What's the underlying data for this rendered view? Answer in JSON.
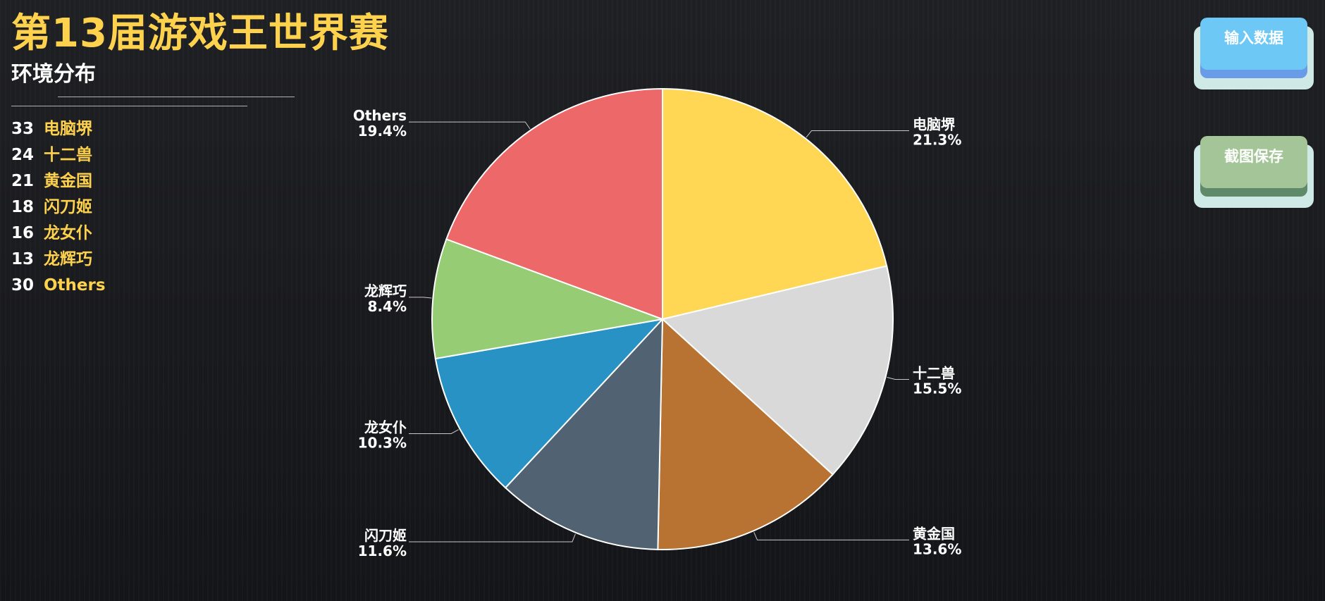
{
  "header": {
    "title": "第13届游戏王世界赛",
    "subtitle": "环境分布"
  },
  "legend": [
    {
      "count": "33",
      "name": "电脑堺"
    },
    {
      "count": "24",
      "name": "十二兽"
    },
    {
      "count": "21",
      "name": "黄金国"
    },
    {
      "count": "18",
      "name": "闪刀姬"
    },
    {
      "count": "16",
      "name": "龙女仆"
    },
    {
      "count": "13",
      "name": "龙辉巧"
    },
    {
      "count": "30",
      "name": "Others"
    }
  ],
  "buttons": {
    "input_label": "输入数据",
    "screenshot_label": "截图保存"
  },
  "colors": {
    "accent": "#ffd24d",
    "background": "#1a1b1f",
    "slice_border": "#ffffff",
    "leader_line": "#c8c8c8"
  },
  "chart_data": {
    "type": "pie",
    "start": "12 o'clock",
    "direction": "clockwise",
    "categories": [
      "电脑堺",
      "十二兽",
      "黄金国",
      "闪刀姬",
      "龙女仆",
      "龙辉巧",
      "Others"
    ],
    "values": [
      33,
      24,
      21,
      18,
      16,
      13,
      30
    ],
    "percent_labels": [
      "21.3%",
      "15.5%",
      "13.6%",
      "11.6%",
      "10.3%",
      "8.4%",
      "19.4%"
    ],
    "colors": [
      "#ffd755",
      "#d9d9d9",
      "#b87332",
      "#516372",
      "#2892c5",
      "#95cc74",
      "#ec6869"
    ]
  }
}
